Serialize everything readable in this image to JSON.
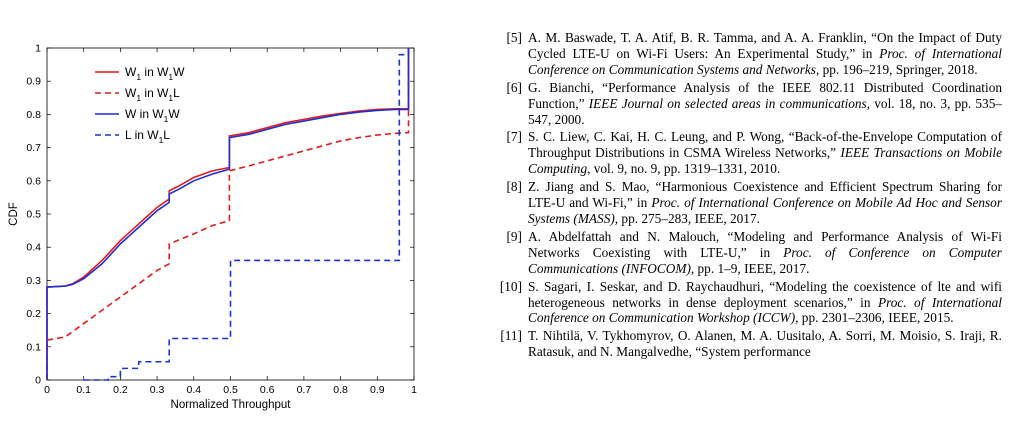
{
  "chart_data": {
    "type": "line",
    "xlabel": "Normalized Throughput",
    "ylabel": "CDF",
    "xlim": [
      0,
      1
    ],
    "ylim": [
      0,
      1
    ],
    "xticks": [
      "0",
      "0.1",
      "0.2",
      "0.3",
      "0.4",
      "0.5",
      "0.6",
      "0.7",
      "0.8",
      "0.9",
      "1"
    ],
    "yticks": [
      "0",
      "0.1",
      "0.2",
      "0.3",
      "0.4",
      "0.5",
      "0.6",
      "0.7",
      "0.8",
      "0.9",
      "1"
    ],
    "grid": false,
    "legend_position": "top-left",
    "series": [
      {
        "name": "W1 in W1W",
        "legend": {
          "pre": "W",
          "sub1": "1",
          "mid": " in W",
          "sub2": "1",
          "post": "W"
        },
        "color": "#e41a1c",
        "dash": "solid",
        "points": [
          [
            0,
            0
          ],
          [
            0,
            0.28
          ],
          [
            0.05,
            0.283
          ],
          [
            0.07,
            0.29
          ],
          [
            0.1,
            0.31
          ],
          [
            0.15,
            0.36
          ],
          [
            0.2,
            0.42
          ],
          [
            0.25,
            0.47
          ],
          [
            0.3,
            0.52
          ],
          [
            0.333,
            0.545
          ],
          [
            0.333,
            0.57
          ],
          [
            0.36,
            0.585
          ],
          [
            0.4,
            0.61
          ],
          [
            0.45,
            0.63
          ],
          [
            0.497,
            0.64
          ],
          [
            0.497,
            0.735
          ],
          [
            0.55,
            0.745
          ],
          [
            0.6,
            0.76
          ],
          [
            0.65,
            0.775
          ],
          [
            0.7,
            0.785
          ],
          [
            0.75,
            0.795
          ],
          [
            0.8,
            0.803
          ],
          [
            0.85,
            0.81
          ],
          [
            0.9,
            0.815
          ],
          [
            0.95,
            0.817
          ],
          [
            0.985,
            0.817
          ],
          [
            0.985,
            1
          ]
        ]
      },
      {
        "name": "W1 in W1L",
        "legend": {
          "pre": "W",
          "sub1": "1",
          "mid": " in W",
          "sub2": "1",
          "post": "L"
        },
        "color": "#e41a1c",
        "dash": "dashed",
        "points": [
          [
            0,
            0
          ],
          [
            0,
            0.12
          ],
          [
            0.05,
            0.13
          ],
          [
            0.1,
            0.17
          ],
          [
            0.15,
            0.21
          ],
          [
            0.2,
            0.25
          ],
          [
            0.25,
            0.29
          ],
          [
            0.3,
            0.33
          ],
          [
            0.333,
            0.35
          ],
          [
            0.333,
            0.41
          ],
          [
            0.4,
            0.44
          ],
          [
            0.45,
            0.465
          ],
          [
            0.497,
            0.48
          ],
          [
            0.497,
            0.63
          ],
          [
            0.55,
            0.645
          ],
          [
            0.6,
            0.66
          ],
          [
            0.65,
            0.675
          ],
          [
            0.7,
            0.69
          ],
          [
            0.75,
            0.705
          ],
          [
            0.8,
            0.72
          ],
          [
            0.85,
            0.73
          ],
          [
            0.9,
            0.738
          ],
          [
            0.95,
            0.743
          ],
          [
            0.985,
            0.745
          ],
          [
            0.985,
            1
          ]
        ]
      },
      {
        "name": "W in W1W",
        "legend": {
          "pre": "W in W",
          "sub1": "1",
          "mid": "W",
          "sub2": "",
          "post": ""
        },
        "color": "#1f2fd1",
        "dash": "solid",
        "points": [
          [
            0,
            0
          ],
          [
            0,
            0.28
          ],
          [
            0.05,
            0.283
          ],
          [
            0.07,
            0.288
          ],
          [
            0.1,
            0.305
          ],
          [
            0.15,
            0.35
          ],
          [
            0.2,
            0.41
          ],
          [
            0.25,
            0.46
          ],
          [
            0.3,
            0.51
          ],
          [
            0.333,
            0.535
          ],
          [
            0.333,
            0.56
          ],
          [
            0.36,
            0.575
          ],
          [
            0.4,
            0.6
          ],
          [
            0.45,
            0.62
          ],
          [
            0.497,
            0.635
          ],
          [
            0.497,
            0.73
          ],
          [
            0.55,
            0.74
          ],
          [
            0.6,
            0.755
          ],
          [
            0.65,
            0.77
          ],
          [
            0.7,
            0.78
          ],
          [
            0.75,
            0.79
          ],
          [
            0.8,
            0.8
          ],
          [
            0.85,
            0.807
          ],
          [
            0.9,
            0.812
          ],
          [
            0.95,
            0.815
          ],
          [
            0.985,
            0.815
          ],
          [
            0.985,
            1
          ]
        ]
      },
      {
        "name": "L in W1L",
        "legend": {
          "pre": "L in W",
          "sub1": "1",
          "mid": "L",
          "sub2": "",
          "post": ""
        },
        "color": "#1f2fd1",
        "dash": "dashed",
        "points": [
          [
            0.1,
            0
          ],
          [
            0.167,
            0
          ],
          [
            0.167,
            0.01
          ],
          [
            0.2,
            0.01
          ],
          [
            0.2,
            0.035
          ],
          [
            0.25,
            0.035
          ],
          [
            0.25,
            0.055
          ],
          [
            0.333,
            0.055
          ],
          [
            0.333,
            0.125
          ],
          [
            0.5,
            0.125
          ],
          [
            0.5,
            0.36
          ],
          [
            0.96,
            0.36
          ],
          [
            0.96,
            0.98
          ],
          [
            0.985,
            0.98
          ],
          [
            0.985,
            1
          ]
        ]
      }
    ]
  },
  "references": [
    {
      "num": "[5]",
      "pre": "A. M. Baswade, T. A. Atif, B. R. Tamma, and A. A. Franklin, “On the Impact of Duty Cycled LTE-U on Wi-Fi Users: An Experimental Study,” in ",
      "venue": "Proc. of International Conference on Communication Systems and Networks",
      "post": ", pp. 196–219, Springer, 2018."
    },
    {
      "num": "[6]",
      "pre": "G. Bianchi, “Performance Analysis of the IEEE 802.11 Distributed Coordination Function,” ",
      "venue": "IEEE Journal on selected areas in communications",
      "post": ", vol. 18, no. 3, pp. 535–547, 2000."
    },
    {
      "num": "[7]",
      "pre": "S. C. Liew, C. Kai, H. C. Leung, and P. Wong, “Back-of-the-Envelope Computation of Throughput Distributions in CSMA Wireless Networks,” ",
      "venue": "IEEE Transactions on Mobile Computing",
      "post": ", vol. 9, no. 9, pp. 1319–1331, 2010."
    },
    {
      "num": "[8]",
      "pre": "Z. Jiang and S. Mao, “Harmonious Coexistence and Efficient Spectrum Sharing for LTE-U and Wi-Fi,” in ",
      "venue": "Proc. of International Conference on Mobile Ad Hoc and Sensor Systems (MASS)",
      "post": ", pp. 275–283, IEEE, 2017."
    },
    {
      "num": "[9]",
      "pre": "A. Abdelfattah and N. Malouch, “Modeling and Performance Analysis of Wi-Fi Networks Coexisting with LTE-U,” in ",
      "venue": "Proc. of Conference on Computer Communications (INFOCOM)",
      "post": ", pp. 1–9, IEEE, 2017."
    },
    {
      "num": "[10]",
      "pre": "S. Sagari, I. Seskar, and D. Raychaudhuri, “Modeling the coexistence of lte and wifi heterogeneous networks in dense deployment scenarios,” in ",
      "venue": "Proc. of International Conference on Communication Workshop (ICCW)",
      "post": ", pp. 2301–2306, IEEE, 2015."
    },
    {
      "num": "[11]",
      "pre": "T. Nihtilä, V. Tykhomyrov, O. Alanen, M. A. Uusitalo, A. Sorri, M. Moisio, S. Iraji, R. Ratasuk, and N. Mangalvedhe, “System performance",
      "venue": "",
      "post": ""
    }
  ]
}
